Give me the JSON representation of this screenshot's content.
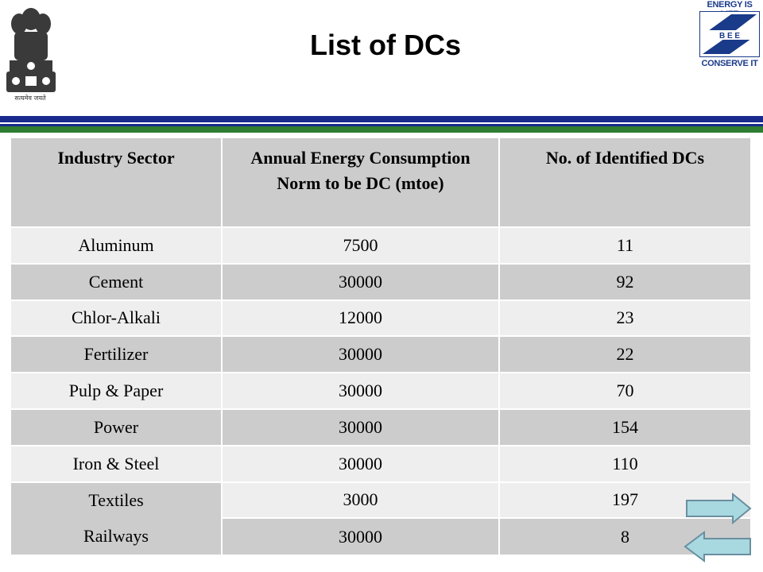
{
  "slide": {
    "title": "List of DCs",
    "emblem_caption": "सत्यमेव जयते",
    "logo": {
      "top_text": "ENERGY IS LIFE",
      "middle_text": "B E E",
      "bottom_text": "CONSERVE IT",
      "colors": {
        "blue": "#1a3a8a",
        "green": "#2e8b3a"
      }
    }
  },
  "table": {
    "headers": [
      "Industry Sector",
      "Annual Energy Consumption Norm to be DC (mtoe)",
      "No. of Identified DCs"
    ],
    "rows": [
      [
        "Aluminum",
        "7500",
        "11"
      ],
      [
        "Cement",
        "30000",
        "92"
      ],
      [
        "Chlor-Alkali",
        "12000",
        "23"
      ],
      [
        "Fertilizer",
        "30000",
        "22"
      ],
      [
        "Pulp & Paper",
        "30000",
        "70"
      ],
      [
        "Power",
        "30000",
        "154"
      ],
      [
        "Iron & Steel",
        "30000",
        "110"
      ],
      [
        "Textiles",
        "3000",
        "197"
      ],
      [
        "Railways",
        "30000",
        "8"
      ]
    ]
  },
  "navigation": {
    "next_icon": "right-arrow-icon",
    "prev_icon": "left-arrow-icon",
    "color": "#a8d8e0"
  },
  "colors": {
    "header_bg": "#cccccc",
    "row_light": "#eeeeee",
    "row_dark": "#cccccc",
    "bar_blue": "#1a2a8c",
    "bar_green": "#2e7d32"
  }
}
